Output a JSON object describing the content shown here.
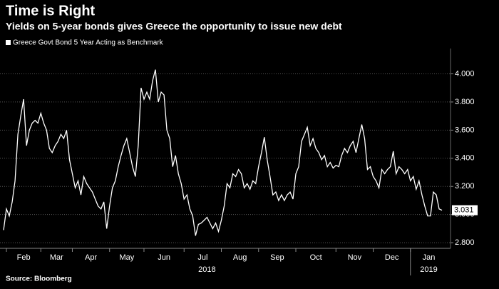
{
  "chart_data": {
    "type": "line",
    "title": "Time is Right",
    "subtitle": "Yields on 5-year bonds gives Greece the opportunity to issue new debt",
    "source": "Source: Bloomberg",
    "categories": [
      null,
      "Feb",
      null,
      null,
      null,
      null,
      null,
      null,
      null,
      null,
      null,
      null,
      null,
      "Mar",
      null,
      null,
      null,
      null,
      null,
      null,
      null,
      null,
      null,
      null,
      "Apr",
      null,
      null,
      null,
      null,
      null,
      null,
      null,
      null,
      null,
      null,
      null,
      null,
      "May",
      null,
      null,
      null,
      null,
      null,
      null,
      null,
      null,
      null,
      null,
      null,
      "Jun",
      null,
      null,
      null,
      null,
      null,
      null,
      null,
      null,
      null,
      null,
      null,
      null,
      null,
      "Jul",
      null,
      null,
      null,
      null,
      null,
      null,
      null,
      null,
      null,
      null,
      null,
      null,
      "Aug",
      null,
      null,
      null,
      null,
      null,
      null,
      null,
      null,
      null,
      null,
      null,
      null,
      "Sep",
      null,
      null,
      null,
      null,
      null,
      null,
      null,
      null,
      null,
      null,
      null,
      null,
      "Oct",
      null,
      null,
      null,
      null,
      null,
      null,
      null,
      null,
      null,
      null,
      null,
      null,
      null,
      "Nov",
      null,
      null,
      null,
      null,
      null,
      null,
      null,
      null,
      null,
      null,
      null,
      null,
      "Dec",
      null,
      null,
      null,
      null,
      null,
      null,
      null,
      null,
      null,
      null,
      null,
      null,
      "Jan",
      null,
      null,
      null,
      null,
      null,
      null,
      null,
      null,
      null,
      null,
      null
    ],
    "x_groups": [
      "2018",
      "2019"
    ],
    "series": [
      {
        "name": "Greece Govt Bond 5 Year Acting as Benchmark",
        "color": "#ffffff",
        "values": [
          2.89,
          3.04,
          2.99,
          3.09,
          3.24,
          3.57,
          3.7,
          3.82,
          3.49,
          3.6,
          3.65,
          3.67,
          3.65,
          3.72,
          3.65,
          3.6,
          3.47,
          3.44,
          3.49,
          3.52,
          3.57,
          3.54,
          3.6,
          3.39,
          3.29,
          3.19,
          3.24,
          3.14,
          3.27,
          3.22,
          3.19,
          3.16,
          3.11,
          3.06,
          3.04,
          3.09,
          2.9,
          3.06,
          3.19,
          3.24,
          3.34,
          3.42,
          3.49,
          3.54,
          3.44,
          3.34,
          3.27,
          3.49,
          3.9,
          3.82,
          3.87,
          3.82,
          3.95,
          4.03,
          3.8,
          3.87,
          3.85,
          3.6,
          3.54,
          3.34,
          3.42,
          3.29,
          3.22,
          3.11,
          3.14,
          3.04,
          2.99,
          2.85,
          2.93,
          2.94,
          2.96,
          2.98,
          2.94,
          2.9,
          2.94,
          2.88,
          2.96,
          3.06,
          3.22,
          3.19,
          3.29,
          3.27,
          3.32,
          3.29,
          3.19,
          3.22,
          3.18,
          3.24,
          3.22,
          3.34,
          3.44,
          3.55,
          3.39,
          3.27,
          3.14,
          3.16,
          3.1,
          3.14,
          3.1,
          3.14,
          3.16,
          3.11,
          3.29,
          3.34,
          3.52,
          3.57,
          3.62,
          3.49,
          3.54,
          3.47,
          3.44,
          3.39,
          3.42,
          3.34,
          3.37,
          3.33,
          3.35,
          3.34,
          3.42,
          3.47,
          3.44,
          3.49,
          3.52,
          3.44,
          3.54,
          3.64,
          3.54,
          3.32,
          3.34,
          3.27,
          3.24,
          3.19,
          3.32,
          3.29,
          3.32,
          3.34,
          3.45,
          3.29,
          3.34,
          3.32,
          3.29,
          3.32,
          3.24,
          3.27,
          3.18,
          3.24,
          3.14,
          3.06,
          2.99,
          2.99,
          3.16,
          3.14,
          3.04,
          3.031
        ]
      }
    ],
    "ylim": [
      2.76,
      4.18
    ],
    "yticks": [
      {
        "value": 2.8,
        "label": "2.800"
      },
      {
        "value": 3,
        "label": "3.000"
      },
      {
        "value": 3.2,
        "label": "3.200"
      },
      {
        "value": 3.4,
        "label": "3.400"
      },
      {
        "value": 3.6,
        "label": "3.600"
      },
      {
        "value": 3.8,
        "label": "3.800"
      },
      {
        "value": 4,
        "label": "4.000"
      }
    ],
    "grid": true
  }
}
